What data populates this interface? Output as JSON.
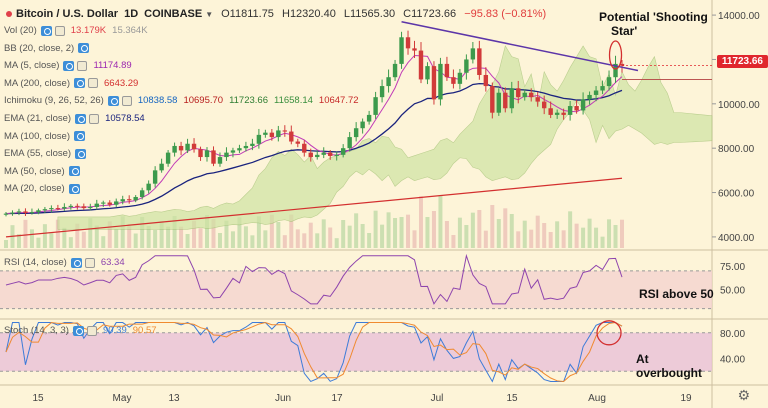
{
  "header": {
    "symbol": "Bitcoin / U.S. Dollar",
    "timeframe": "1D",
    "exchange": "COINBASE",
    "open": "O11811.75",
    "high": "H12320.40",
    "low": "L11565.30",
    "close": "C11723.66",
    "change": "−95.83 (−0.81%)"
  },
  "legends": [
    {
      "label": "Vol (20)",
      "values": [
        "13.179K",
        "15.364K"
      ],
      "colors": [
        "#e0404a",
        "#999999"
      ]
    },
    {
      "label": "BB (20, close, 2)",
      "values": [],
      "colors": []
    },
    {
      "label": "MA (5, close)",
      "values": [
        "11174.89"
      ],
      "colors": [
        "#9c27b0"
      ]
    },
    {
      "label": "MA (200, close)",
      "values": [
        "6643.29"
      ],
      "colors": [
        "#d32f2f"
      ]
    },
    {
      "label": "Ichimoku (9, 26, 52, 26)",
      "values": [
        "10838.58",
        "10695.70",
        "11723.66",
        "11658.14",
        "10647.72"
      ],
      "colors": [
        "#1565c0",
        "#b71c1c",
        "#2e7d32",
        "#388e3c",
        "#c62828"
      ]
    },
    {
      "label": "EMA (21, close)",
      "values": [
        "10578.54"
      ],
      "colors": [
        "#1a237e"
      ]
    },
    {
      "label": "MA (100, close)",
      "values": [],
      "colors": []
    },
    {
      "label": "EMA (55, close)",
      "values": [],
      "colors": []
    },
    {
      "label": "MA (50, close)",
      "values": [],
      "colors": []
    },
    {
      "label": "MA (20, close)",
      "values": [],
      "colors": []
    }
  ],
  "price_axis": {
    "ticks": [
      "14000.00",
      "12000.00",
      "10000.00",
      "8000.00",
      "6000.00",
      "4000.00"
    ],
    "current_price": "11723.66"
  },
  "rsi": {
    "label": "RSI (14, close)",
    "value": "63.34",
    "ticks": [
      "75.00",
      "50.00"
    ],
    "annotation": "RSI above 50"
  },
  "stoch": {
    "label": "Stoch (14, 3, 3)",
    "values": [
      "90.39",
      "90.57"
    ],
    "ticks": [
      "80.00",
      "40.00"
    ],
    "annotation_line1": "At",
    "annotation_line2": "overbought"
  },
  "annotations": {
    "shooting_star_line1": "Potential 'Shooting",
    "shooting_star_line2": "Star'"
  },
  "time_axis": [
    "15",
    "May",
    "13",
    "Jun",
    "17",
    "Jul",
    "15",
    "Aug",
    "19"
  ],
  "colors": {
    "up": "#3c9a4c",
    "down": "#d13a3a",
    "background": "#fdf4d8",
    "ma200": "#d32f2f",
    "ema21": "#1a237e",
    "ma5": "#c13bb7",
    "trendline": "#5c35a8",
    "cloud": "#cfe3a3",
    "highlight_circle": "#d32f2f",
    "rsi_band": "#f4d3d0",
    "stoch_band": "#e9c0d8",
    "price_tag": "#e0262d"
  },
  "chart_data": {
    "type": "candlestick",
    "title": "Bitcoin / U.S. Dollar 1D COINBASE",
    "x_labels": [
      "15",
      "May",
      "13",
      "Jun",
      "17",
      "Jul",
      "15",
      "Aug",
      "19"
    ],
    "ylim": [
      3500,
      14500
    ],
    "closes": [
      5050,
      5100,
      5150,
      5080,
      5120,
      5200,
      5250,
      5300,
      5280,
      5350,
      5400,
      5380,
      5300,
      5350,
      5500,
      5550,
      5450,
      5600,
      5700,
      5650,
      5800,
      6100,
      6400,
      7000,
      7300,
      7800,
      8100,
      7900,
      8200,
      7950,
      7600,
      7900,
      7300,
      7600,
      7800,
      7900,
      8000,
      8100,
      8200,
      8600,
      8700,
      8500,
      8800,
      8750,
      8300,
      8200,
      7800,
      7600,
      7700,
      7800,
      7650,
      7700,
      8000,
      8500,
      8900,
      9200,
      9500,
      10300,
      10800,
      11200,
      11800,
      13000,
      12500,
      12400,
      11100,
      11700,
      10200,
      11800,
      11200,
      10900,
      11400,
      12000,
      12500,
      11300,
      10800,
      9600,
      10500,
      9800,
      10700,
      10300,
      10500,
      10300,
      10100,
      9800,
      9500,
      9600,
      9500,
      9900,
      9700,
      10200,
      10400,
      10600,
      10800,
      11200,
      11800,
      11723
    ],
    "ma200_endpoints": [
      4000,
      6643
    ],
    "ema21_last": 10578.54,
    "ma5_last": 11174.89,
    "rsi_last": 63.34,
    "stoch_k_last": 90.39,
    "stoch_d_last": 90.57
  }
}
